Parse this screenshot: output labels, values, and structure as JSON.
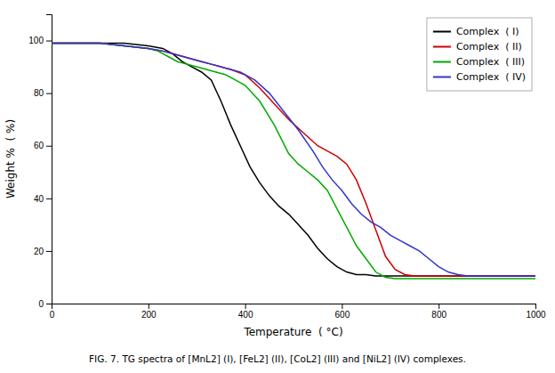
{
  "chart_data": {
    "type": "line",
    "xlabel": "Temperature  ( °C)",
    "ylabel": "Weight %  ( %)",
    "caption": "FIG. 7. TG spectra of [MnL2] (I), [FeL2] (II), [CoL2] (III) and [NiL2] (IV) complexes.",
    "xlim": [
      0,
      1000
    ],
    "ylim": [
      0,
      110
    ],
    "xticks": [
      0,
      200,
      400,
      600,
      800,
      1000
    ],
    "yticks": [
      0,
      20,
      40,
      60,
      80,
      100
    ],
    "legend": "upper right",
    "series": [
      {
        "name": "Complex  ( I)",
        "color": "#000000",
        "x": [
          0,
          30,
          60,
          100,
          150,
          200,
          230,
          250,
          270,
          290,
          310,
          330,
          350,
          370,
          390,
          410,
          430,
          450,
          470,
          490,
          510,
          530,
          550,
          570,
          590,
          610,
          630,
          650,
          670,
          690,
          710,
          730,
          760,
          800,
          850,
          900,
          950,
          1000
        ],
        "values": [
          99,
          99,
          99,
          99,
          99,
          98,
          97,
          95,
          92,
          90,
          88,
          85,
          77,
          68,
          60,
          52,
          46,
          41,
          37,
          34,
          30,
          26,
          21,
          17,
          14,
          12,
          11,
          11,
          10.5,
          10.5,
          10.5,
          10.5,
          10.5,
          10.5,
          10.5,
          10.5,
          10.5,
          10.5
        ]
      },
      {
        "name": "Complex  ( II)",
        "color": "#cc0000",
        "x": [
          0,
          30,
          60,
          100,
          150,
          200,
          230,
          250,
          270,
          290,
          310,
          330,
          350,
          370,
          400,
          430,
          460,
          490,
          520,
          550,
          570,
          590,
          610,
          630,
          650,
          670,
          690,
          710,
          730,
          750,
          770,
          800,
          830,
          860,
          900,
          950,
          1000
        ],
        "values": [
          99,
          99,
          99,
          99,
          98,
          97,
          96,
          95,
          94,
          93,
          92,
          91,
          90,
          89,
          87,
          82,
          76,
          70,
          65,
          60,
          58,
          56,
          53,
          47,
          38,
          28,
          18,
          13,
          11,
          10.5,
          10.5,
          10.5,
          10.5,
          10.5,
          10.5,
          10.5,
          10.5
        ]
      },
      {
        "name": "Complex  ( III)",
        "color": "#00aa00",
        "x": [
          0,
          30,
          60,
          100,
          150,
          200,
          220,
          240,
          260,
          280,
          300,
          320,
          340,
          360,
          380,
          400,
          430,
          460,
          490,
          510,
          530,
          550,
          570,
          590,
          610,
          630,
          650,
          670,
          690,
          710,
          730,
          760,
          800,
          850,
          900,
          950,
          1000
        ],
        "values": [
          99,
          99,
          99,
          99,
          98,
          97,
          96,
          94,
          92,
          91,
          90,
          89,
          88,
          87,
          85,
          83,
          77,
          68,
          57,
          53,
          50,
          47,
          43,
          36,
          29,
          22,
          17,
          12,
          10,
          9.5,
          9.5,
          9.5,
          9.5,
          9.5,
          9.5,
          9.5,
          9.5
        ]
      },
      {
        "name": "Complex  ( IV)",
        "color": "#3333cc",
        "x": [
          0,
          30,
          60,
          100,
          150,
          200,
          230,
          250,
          270,
          290,
          310,
          330,
          350,
          370,
          390,
          420,
          450,
          480,
          510,
          540,
          560,
          580,
          600,
          620,
          640,
          660,
          680,
          700,
          720,
          740,
          760,
          780,
          800,
          820,
          840,
          860,
          900,
          950,
          1000
        ],
        "values": [
          99,
          99,
          99,
          99,
          98,
          97,
          96,
          95,
          94,
          93,
          92,
          91,
          90,
          89,
          88,
          85,
          80,
          73,
          66,
          58,
          52,
          47,
          43,
          38,
          34,
          31,
          29,
          26,
          24,
          22,
          20,
          17,
          14,
          12,
          11,
          10.5,
          10.5,
          10.5,
          10.5
        ]
      }
    ]
  }
}
